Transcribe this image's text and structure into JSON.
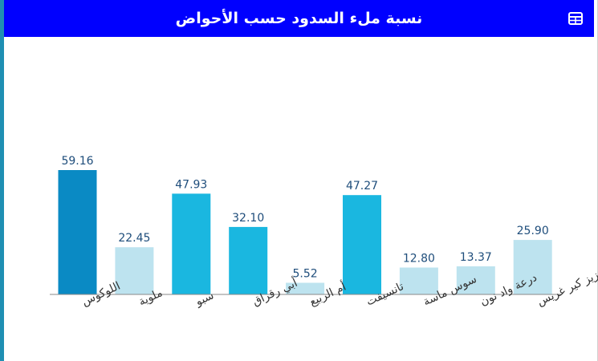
{
  "header": {
    "title": "نسبة ملء السدود حسب الأحواض",
    "title_color": "#ffffff",
    "background": "#0000ff",
    "table_icon": "table-grid-icon"
  },
  "chart_data": {
    "type": "bar",
    "title": "نسبة ملء السدود حسب الأحواض",
    "xlabel": "",
    "ylabel": "",
    "ylim": [
      0,
      60
    ],
    "grid": false,
    "categories": [
      "اللوكوس",
      "ملوية",
      "سبو",
      "أبي رقراق",
      "أم الربيع",
      "تانسيفت",
      "سوس ماسة",
      "درعة واد نون",
      "زيز كير غريس"
    ],
    "values": [
      59.16,
      22.45,
      47.93,
      32.1,
      5.52,
      47.27,
      12.8,
      13.37,
      25.9
    ],
    "value_labels": [
      "59.16",
      "22.45",
      "47.93",
      "32.10",
      "5.52",
      "47.27",
      "12.80",
      "13.37",
      "25.90"
    ],
    "colors": [
      "#0a8ac4",
      "#bde3ef",
      "#1ab7e0",
      "#1ab7e0",
      "#bde3ef",
      "#1ab7e0",
      "#bde3ef",
      "#bde3ef",
      "#bde3ef"
    ]
  }
}
